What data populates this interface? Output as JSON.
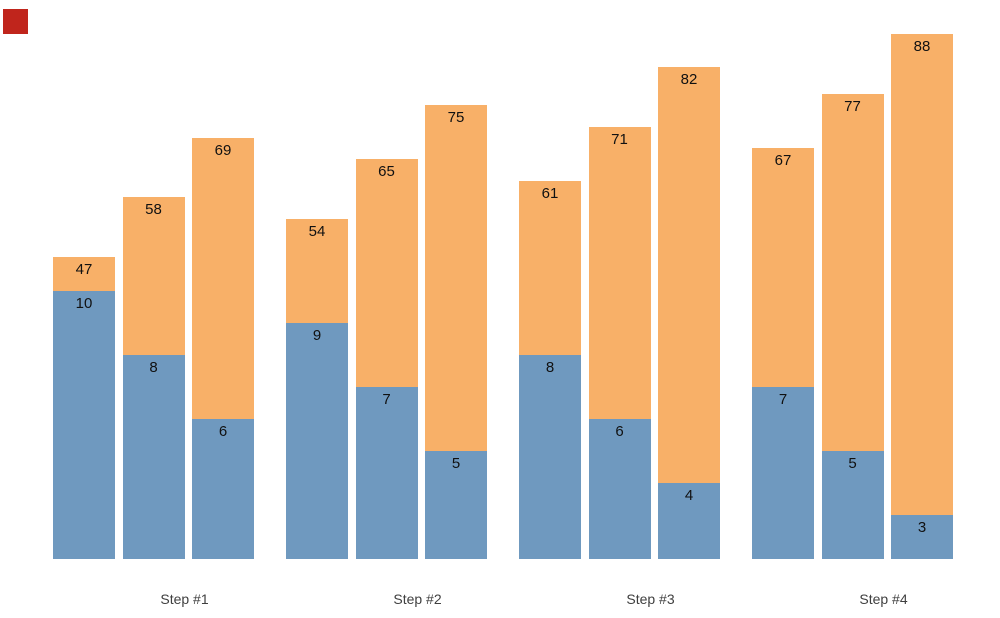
{
  "chart_data": {
    "type": "bar",
    "variant": "grouped-stacked",
    "title": "",
    "xlabel": "",
    "ylabel": "",
    "categories": [
      "Step #1",
      "Step #2",
      "Step #3",
      "Step #4"
    ],
    "bars_per_group": 3,
    "series": [
      {
        "name": "blue-bottom-segment",
        "color": "#6f99bf",
        "values": [
          [
            10,
            8,
            6
          ],
          [
            9,
            7,
            5
          ],
          [
            8,
            6,
            4
          ],
          [
            7,
            5,
            3
          ]
        ]
      },
      {
        "name": "orange-top-segment",
        "color": "#f8b068",
        "values": [
          [
            47,
            58,
            69
          ],
          [
            54,
            65,
            75
          ],
          [
            61,
            71,
            82
          ],
          [
            67,
            77,
            88
          ]
        ]
      }
    ],
    "value_labels_shown": true,
    "value_label_color": "#111111",
    "category_label_color": "#3f3f3f",
    "background_color": "#ffffff",
    "grid": false,
    "legend": false,
    "axes_lines": false
  },
  "overlay": {
    "red_marker_color": "#c0251c"
  }
}
